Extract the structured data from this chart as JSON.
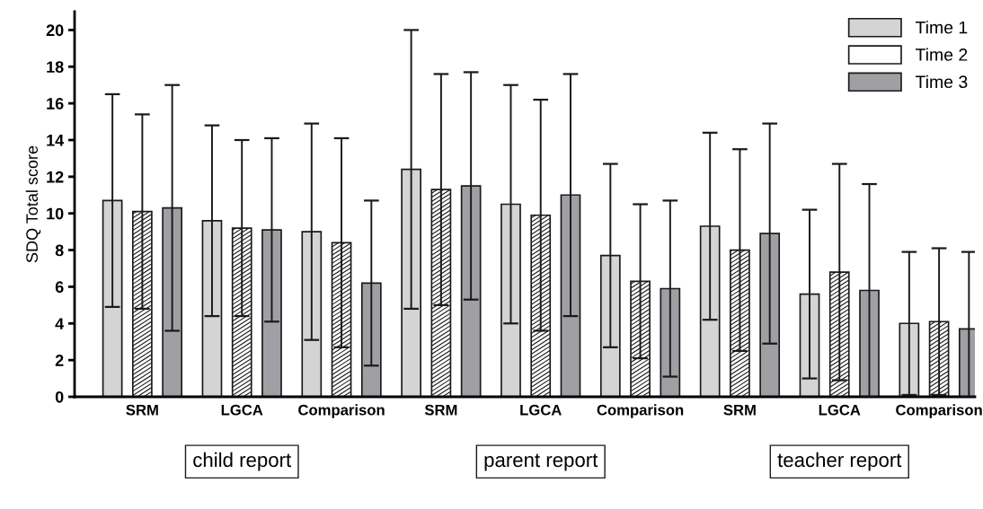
{
  "chart_data": {
    "type": "bar",
    "ylabel": "SDQ Total score",
    "categories": [
      "SRM",
      "LGCA",
      "Comparison",
      "SRM",
      "LGCA",
      "Comparison",
      "SRM",
      "LGCA",
      "Comparison"
    ],
    "series": [
      {
        "name": "Time 1",
        "color": "#d4d4d4",
        "values": [
          10.7,
          9.6,
          9.0,
          12.4,
          10.5,
          7.7,
          9.3,
          5.6,
          4.0
        ],
        "errors": [
          [
            4.9,
            16.5
          ],
          [
            4.4,
            14.8
          ],
          [
            3.1,
            14.9
          ],
          [
            4.8,
            20.0
          ],
          [
            4.0,
            17.0
          ],
          [
            2.7,
            12.7
          ],
          [
            4.2,
            14.4
          ],
          [
            1.0,
            10.2
          ],
          [
            0.1,
            7.9
          ]
        ]
      },
      {
        "name": "Time 2",
        "color": "#ffffff",
        "values": [
          10.1,
          9.2,
          8.4,
          11.3,
          9.9,
          6.3,
          8.0,
          6.8,
          4.1
        ],
        "errors": [
          [
            4.8,
            15.4
          ],
          [
            4.4,
            14.0
          ],
          [
            2.7,
            14.1
          ],
          [
            5.0,
            17.6
          ],
          [
            3.6,
            16.2
          ],
          [
            2.1,
            10.5
          ],
          [
            2.5,
            13.5
          ],
          [
            0.9,
            12.7
          ],
          [
            0.1,
            8.1
          ]
        ]
      },
      {
        "name": "Time 3",
        "color": "#a0a0a4",
        "values": [
          10.3,
          9.1,
          6.2,
          11.5,
          11.0,
          5.9,
          8.9,
          5.8,
          3.7
        ],
        "errors": [
          [
            3.6,
            17.0
          ],
          [
            4.1,
            14.1
          ],
          [
            1.7,
            10.7
          ],
          [
            5.3,
            17.7
          ],
          [
            4.4,
            17.6
          ],
          [
            1.1,
            10.7
          ],
          [
            2.9,
            14.9
          ],
          [
            0.0,
            11.6
          ],
          [
            0.0,
            7.9
          ]
        ]
      }
    ],
    "ylim": [
      0,
      21
    ],
    "yticks": [
      0,
      2,
      4,
      6,
      8,
      10,
      12,
      14,
      16,
      18,
      20
    ],
    "annotations": [
      "child report",
      "parent report",
      "teacher report"
    ],
    "legend": "top right",
    "grid": false
  }
}
